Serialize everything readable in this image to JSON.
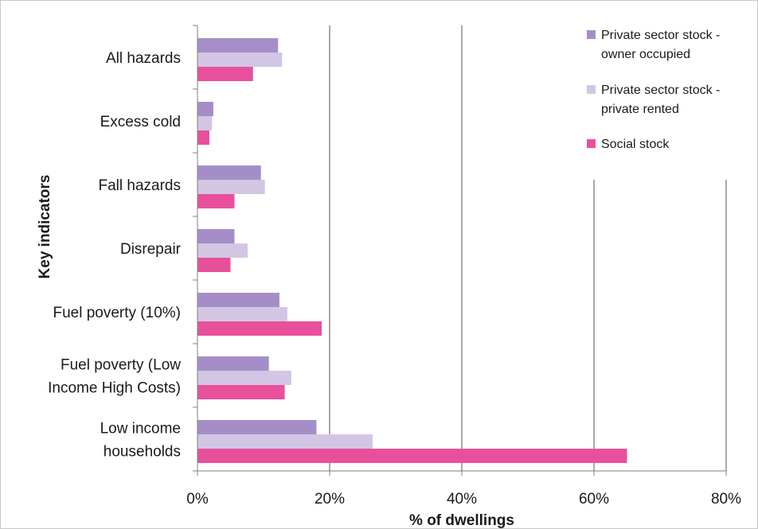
{
  "chart_data": {
    "type": "bar",
    "orientation": "horizontal",
    "categories": [
      [
        "All hazards"
      ],
      [
        "Excess cold"
      ],
      [
        "Fall hazards"
      ],
      [
        "Disrepair"
      ],
      [
        "Fuel poverty (10%)"
      ],
      [
        "Fuel poverty (Low",
        "Income High Costs)"
      ],
      [
        "Low income",
        "households"
      ]
    ],
    "series": [
      {
        "name": [
          "Private sector stock -",
          "owner occupied"
        ],
        "color": "#a58ec7",
        "values": [
          12.2,
          2.4,
          9.6,
          5.6,
          12.4,
          10.8,
          18.0
        ]
      },
      {
        "name": [
          "Private sector stock -",
          "private rented"
        ],
        "color": "#d2c6e4",
        "values": [
          12.8,
          2.2,
          10.2,
          7.6,
          13.6,
          14.2,
          26.5
        ]
      },
      {
        "name": [
          "Social stock"
        ],
        "color": "#e8509c",
        "values": [
          8.4,
          1.8,
          5.6,
          5.0,
          18.8,
          13.2,
          65.0
        ]
      }
    ],
    "xlabel": "% of dwellings",
    "ylabel": "Key indicators",
    "xlim": [
      0,
      80
    ],
    "xticks": [
      "0%",
      "20%",
      "40%",
      "60%",
      "80%"
    ],
    "xtick_values": [
      0,
      20,
      40,
      60,
      80
    ],
    "grid": "vertical",
    "legend": "top-right"
  }
}
